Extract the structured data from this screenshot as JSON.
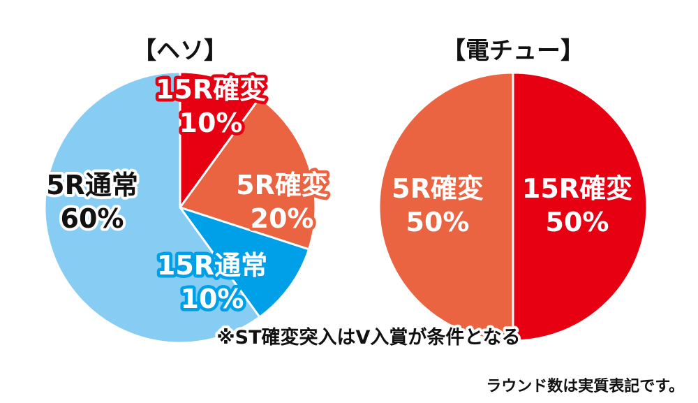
{
  "chart_data": [
    {
      "type": "pie",
      "title": "【ヘソ】",
      "slices": [
        {
          "label": "15R確変",
          "value": 10,
          "value_label": "10%",
          "color": "#e60012"
        },
        {
          "label": "5R確変",
          "value": 20,
          "value_label": "20%",
          "color": "#ea6442"
        },
        {
          "label": "15R通常",
          "value": 10,
          "value_label": "10%",
          "color": "#00a0e9"
        },
        {
          "label": "5R通常",
          "value": 60,
          "value_label": "60%",
          "color": "#87cdf3"
        }
      ]
    },
    {
      "type": "pie",
      "title": "【電チュー】",
      "slices": [
        {
          "label": "15R確変",
          "value": 50,
          "value_label": "50%",
          "color": "#e60012"
        },
        {
          "label": "5R確変",
          "value": 50,
          "value_label": "50%",
          "color": "#ea6442"
        }
      ]
    }
  ],
  "annotations": {
    "st_note": "※ST確変突入はV入賞が条件となる",
    "round_note": "ラウンド数は実質表記です。"
  }
}
